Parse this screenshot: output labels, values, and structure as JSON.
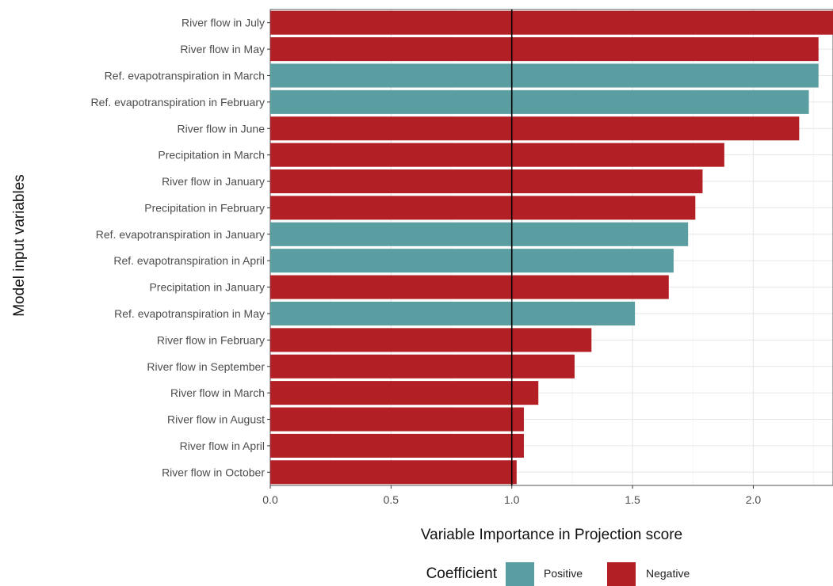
{
  "chart_data": {
    "type": "bar",
    "orientation": "horizontal",
    "xlabel": "Variable Importance in Projection score",
    "ylabel": "Model input variables",
    "xlim": [
      0,
      2.33
    ],
    "xticks": [
      "0.0",
      "0.5",
      "1.0",
      "1.5",
      "2.0"
    ],
    "reference_line": 1.0,
    "grid": true,
    "legend": {
      "title": "Coefficient",
      "placement": "bottom",
      "entries": [
        {
          "label": "Positive",
          "color": "#5b9ea1"
        },
        {
          "label": "Negative",
          "color": "#b22025"
        }
      ]
    },
    "categories": [
      "River flow in July",
      "River flow in May",
      "Ref. evapotranspiration in March",
      "Ref. evapotranspiration in February",
      "River flow in June",
      "Precipitation in March",
      "River flow in January",
      "Precipitation in February",
      "Ref. evapotranspiration in January",
      "Ref. evapotranspiration in April",
      "Precipitation in January",
      "Ref. evapotranspiration in May",
      "River flow in February",
      "River flow in September",
      "River flow in March",
      "River flow in August",
      "River flow in April",
      "River flow in October"
    ],
    "values": [
      2.33,
      2.27,
      2.27,
      2.23,
      2.19,
      1.88,
      1.79,
      1.76,
      1.73,
      1.67,
      1.65,
      1.51,
      1.33,
      1.26,
      1.11,
      1.05,
      1.05,
      1.02
    ],
    "coefficient": [
      "Negative",
      "Negative",
      "Positive",
      "Positive",
      "Negative",
      "Negative",
      "Negative",
      "Negative",
      "Positive",
      "Positive",
      "Negative",
      "Positive",
      "Negative",
      "Negative",
      "Negative",
      "Negative",
      "Negative",
      "Negative"
    ]
  }
}
